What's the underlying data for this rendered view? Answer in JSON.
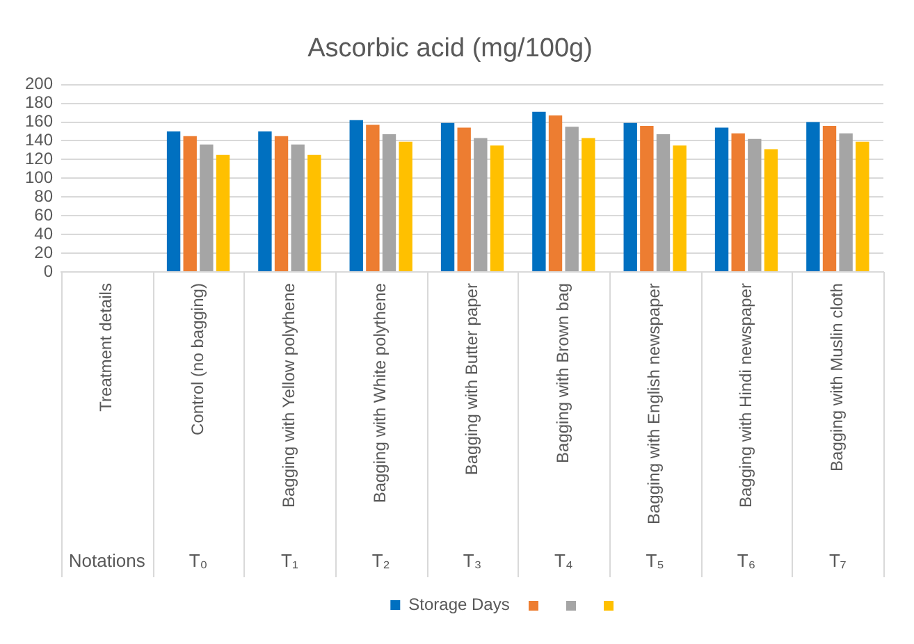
{
  "chart_data": {
    "type": "bar",
    "title": "Ascorbic acid (mg/100g)",
    "categories": [
      "Treatment details",
      "Control (no bagging)",
      "Bagging with Yellow polythene",
      "Bagging with White polythene",
      "Bagging with Butter paper",
      "Bagging with Brown bag",
      "Bagging with English newspaper",
      "Bagging with Hindi newspaper",
      "Bagging with Muslin cloth"
    ],
    "annotations": [
      "Notations",
      "T₀",
      "T₁",
      "T₂",
      "T₃",
      "T₄",
      "T₅",
      "T₆",
      "T₇"
    ],
    "series": [
      {
        "name": "Storage Days",
        "color": "#0070c0",
        "values": [
          null,
          150,
          150,
          162,
          159,
          171,
          159,
          154,
          160
        ]
      },
      {
        "color": "#ed7d31",
        "values": [
          null,
          145,
          145,
          157,
          154,
          167,
          156,
          148,
          156
        ]
      },
      {
        "color": "#a5a5a5",
        "values": [
          null,
          136,
          136,
          147,
          143,
          155,
          147,
          142,
          148
        ]
      },
      {
        "color": "#ffc000",
        "values": [
          null,
          125,
          125,
          139,
          135,
          143,
          135,
          131,
          139
        ]
      }
    ],
    "ylim": [
      0,
      200
    ],
    "yticks": [
      0,
      20,
      40,
      60,
      80,
      100,
      120,
      140,
      160,
      180,
      200
    ],
    "grid": "y",
    "legend": "bottom"
  }
}
